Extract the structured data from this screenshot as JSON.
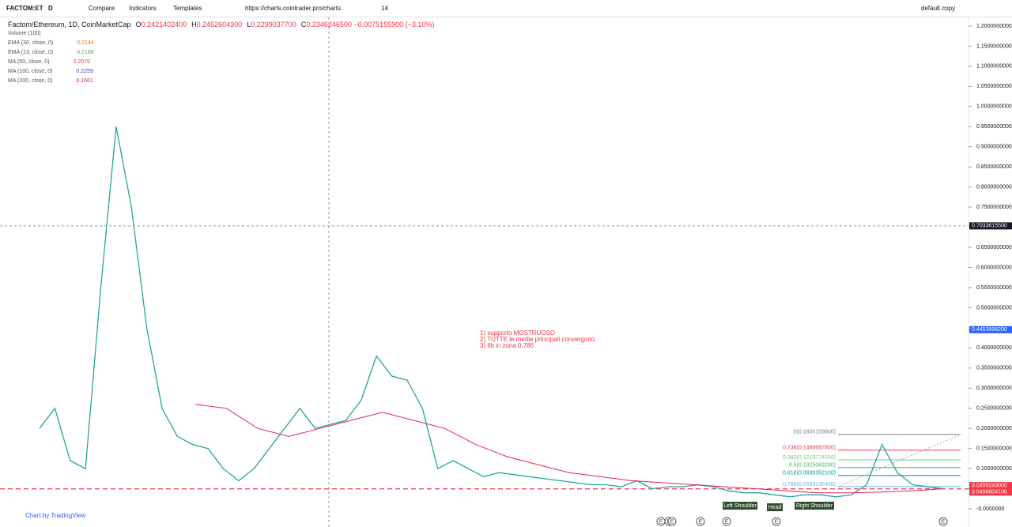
{
  "toolbar": {
    "symbol": "FACTOM:ET",
    "interval": "D",
    "compare": "Compare",
    "indicators": "Indicators",
    "templates": "Templates",
    "url": "https://charts.cointrader.pro/charts.",
    "font_size": "14",
    "layout": "default copy"
  },
  "legend": {
    "title": "Factom/Ethereum, 1D, CoinMarketCap",
    "ohlc": [
      {
        "key": "O",
        "value": "0.2421402400"
      },
      {
        "key": "H",
        "value": "0.2452604300"
      },
      {
        "key": "L",
        "value": "0.2299037700"
      },
      {
        "key": "C",
        "value": "0.2346246500"
      }
    ],
    "change": "−0.0075155900 (−3.10%)",
    "indicators": [
      {
        "name": "Volume (100)",
        "value": null
      },
      {
        "name": "EMA (30, close, 0)",
        "value": "0.2144",
        "color": "#ff6d00"
      },
      {
        "name": "EMA (13, close, 0)",
        "value": "0.2188",
        "color": "#4caf50"
      },
      {
        "name": "MA (50, close, 0)",
        "value": "0.2079",
        "color": "#f44336"
      },
      {
        "name": "MA (100, close, 0)",
        "value": "0.2259",
        "color": "#3f3fbf"
      },
      {
        "name": "MA (200, close, 0)",
        "value": "0.1661",
        "color": "#e91e63"
      }
    ]
  },
  "chart_data": {
    "type": "line",
    "grid": false,
    "ylim": [
      -0.045,
      1.2215
    ],
    "yticks": [
      {
        "value": 1.2,
        "label": "1.2000000000"
      },
      {
        "value": 1.15,
        "label": "1.1500000000"
      },
      {
        "value": 1.1,
        "label": "1.1000000000"
      },
      {
        "value": 1.05,
        "label": "1.0500000000"
      },
      {
        "value": 1.0,
        "label": "1.0000000000"
      },
      {
        "value": 0.95,
        "label": "0.9500000000"
      },
      {
        "value": 0.9,
        "label": "0.9000000000"
      },
      {
        "value": 0.85,
        "label": "0.8500000000"
      },
      {
        "value": 0.8,
        "label": "0.8000000000"
      },
      {
        "value": 0.75,
        "label": "0.7500000000"
      },
      {
        "value": 0.65,
        "label": "0.6500000000"
      },
      {
        "value": 0.6,
        "label": "0.6000000000"
      },
      {
        "value": 0.55,
        "label": "0.5500000000"
      },
      {
        "value": 0.5,
        "label": "0.5000000000"
      },
      {
        "value": 0.4,
        "label": "0.4000000000"
      },
      {
        "value": 0.35,
        "label": "0.3500000000"
      },
      {
        "value": 0.3,
        "label": "0.3000000000"
      },
      {
        "value": 0.25,
        "label": "0.2500000000"
      },
      {
        "value": 0.2,
        "label": "0.2000000000"
      },
      {
        "value": 0.15,
        "label": "0.1500000000"
      },
      {
        "value": 0.1,
        "label": "0.1000000000"
      },
      {
        "value": 0.05,
        "label": "0.0500000000"
      },
      {
        "value": 0,
        "label": "-0.0000000"
      }
    ],
    "series": [
      {
        "name": "Factom/Ethereum",
        "color": "#26a69a",
        "values": [
          0.2,
          0.25,
          0.12,
          0.1,
          0.55,
          0.95,
          0.75,
          0.45,
          0.25,
          0.18,
          0.16,
          0.15,
          0.1,
          0.07,
          0.1,
          0.15,
          0.2,
          0.25,
          0.2,
          0.21,
          0.22,
          0.27,
          0.38,
          0.33,
          0.32,
          0.25,
          0.1,
          0.12,
          0.1,
          0.08,
          0.09,
          0.085,
          0.08,
          0.075,
          0.07,
          0.065,
          0.06,
          0.06,
          0.055,
          0.07,
          0.05,
          0.055,
          0.055,
          0.06,
          0.055,
          0.045,
          0.04,
          0.04,
          0.035,
          0.03,
          0.035,
          0.035,
          0.03,
          0.035,
          0.06,
          0.16,
          0.09,
          0.06,
          0.055,
          0.05
        ]
      },
      {
        "name": "MA (200, close, 0)",
        "color": "#e91e63",
        "values": [
          null,
          null,
          null,
          null,
          null,
          0.26,
          0.25,
          0.2,
          0.18,
          0.2,
          0.22,
          0.24,
          0.22,
          0.2,
          0.16,
          0.13,
          0.11,
          0.09,
          0.08,
          0.07,
          0.065,
          0.06,
          0.055,
          0.05,
          0.045,
          0.04,
          0.04,
          0.042,
          0.045,
          0.05
        ]
      }
    ],
    "price_labels": [
      {
        "value": 0.70336155,
        "label": "0.7033615500",
        "color": "#131722"
      },
      {
        "value": 0.44539962,
        "label": "0.4453996200",
        "color": "#2962ff"
      },
      {
        "value": 0.0499249,
        "label": "0.0499249000",
        "color": "#f23645"
      },
      {
        "value": 0.04968041,
        "label": "0.0496804100",
        "color": "#f23645"
      }
    ],
    "crosshair": 0.70336155,
    "support": 0.04968041,
    "fib": [
      {
        "label": "0(0.1850109900)",
        "value": 0.18501099,
        "color": "#787b86"
      },
      {
        "label": "0.236(0.1460687800)",
        "value": 0.14606878,
        "color": "#f23645"
      },
      {
        "label": "0.382(0.1219774200)",
        "value": 0.12197742,
        "color": "#81c784"
      },
      {
        "label": "0.5(0.1025063200)",
        "value": 0.10250632,
        "color": "#4caf50"
      },
      {
        "label": "0.618(0.0830352100)",
        "value": 0.08303521,
        "color": "#089981"
      },
      {
        "label": "0.786(0.0553136400)",
        "value": 0.05531364,
        "color": "#64b5f6"
      }
    ],
    "annotation": [
      "1) supporto MOSTRUOSO",
      "2) TUTTE le medie principali convergono",
      "3) fib in zona 0,786"
    ],
    "patterns": [
      "Left Shoulder",
      "Head",
      "Right Shoulder"
    ],
    "events": [
      "E",
      "E",
      "E",
      "E",
      "E",
      "E",
      "E"
    ],
    "credit": "Chart by TradingView"
  }
}
